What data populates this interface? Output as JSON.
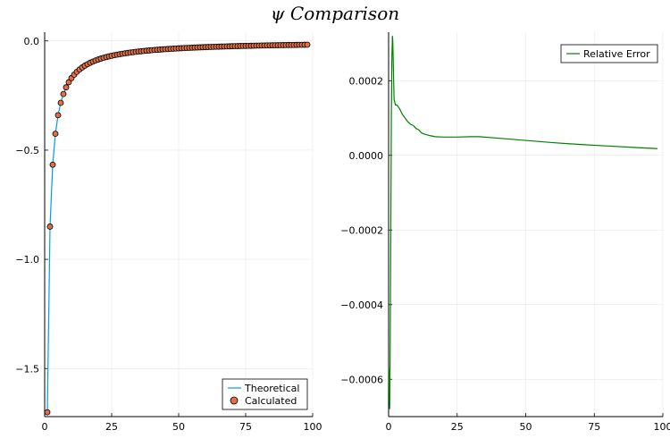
{
  "title": "ψ Comparison",
  "chart_data": [
    {
      "type": "scatter",
      "title": "",
      "xlabel": "",
      "ylabel": "",
      "xlim": [
        0,
        100
      ],
      "ylim": [
        -1.72,
        0.04
      ],
      "xticks": [
        "0",
        "25",
        "50",
        "75",
        "100"
      ],
      "yticks": [
        "0.0",
        "−0.5",
        "−1.0",
        "−1.5"
      ],
      "grid": true,
      "legend_position": "bottom-right",
      "series": [
        {
          "name": "Theoretical",
          "kind": "line",
          "color": "#009af9",
          "formula": "-1.7 / x",
          "x_range": [
            1,
            98
          ]
        },
        {
          "name": "Calculated",
          "kind": "scatter",
          "color": "#e26f46",
          "formula": "-1.7 / x",
          "x_range": [
            1,
            98
          ]
        }
      ]
    },
    {
      "type": "line",
      "title": "",
      "xlabel": "",
      "ylabel": "",
      "xlim": [
        0,
        100
      ],
      "ylim": [
        -0.0007,
        0.00033
      ],
      "xticks": [
        "0",
        "25",
        "50",
        "75",
        "100"
      ],
      "yticks": [
        "0.0002",
        "0.0000",
        "−0.0002",
        "−0.0004",
        "−0.0006"
      ],
      "grid": true,
      "legend_position": "top-right",
      "series": [
        {
          "name": "Relative Error",
          "color": "#008000",
          "x": [
            0.1,
            0.2,
            0.4,
            0.6,
            0.8,
            1.0,
            1.2,
            1.4,
            1.5,
            1.7,
            2.0,
            2.5,
            3,
            4,
            5,
            6,
            7,
            8,
            9,
            10,
            11,
            12,
            13,
            14,
            15,
            17,
            20,
            25,
            30,
            33,
            40,
            50,
            60,
            70,
            80,
            90,
            98
          ],
          "y": [
            -0.00057,
            -0.00062,
            -0.00068,
            -0.0005,
            -0.0002,
            0.0001,
            0.00026,
            0.00032,
            0.00031,
            0.00025,
            0.00015,
            0.000135,
            0.000135,
            0.000125,
            0.00011,
            0.0001,
            9e-05,
            8.3e-05,
            8e-05,
            7.2e-05,
            6.8e-05,
            6e-05,
            5.7e-05,
            5.5e-05,
            5.3e-05,
            5e-05,
            4.9e-05,
            4.9e-05,
            5e-05,
            5e-05,
            4.6e-05,
            4e-05,
            3.4e-05,
            2.9e-05,
            2.5e-05,
            2.1e-05,
            1.8e-05
          ]
        }
      ]
    }
  ]
}
